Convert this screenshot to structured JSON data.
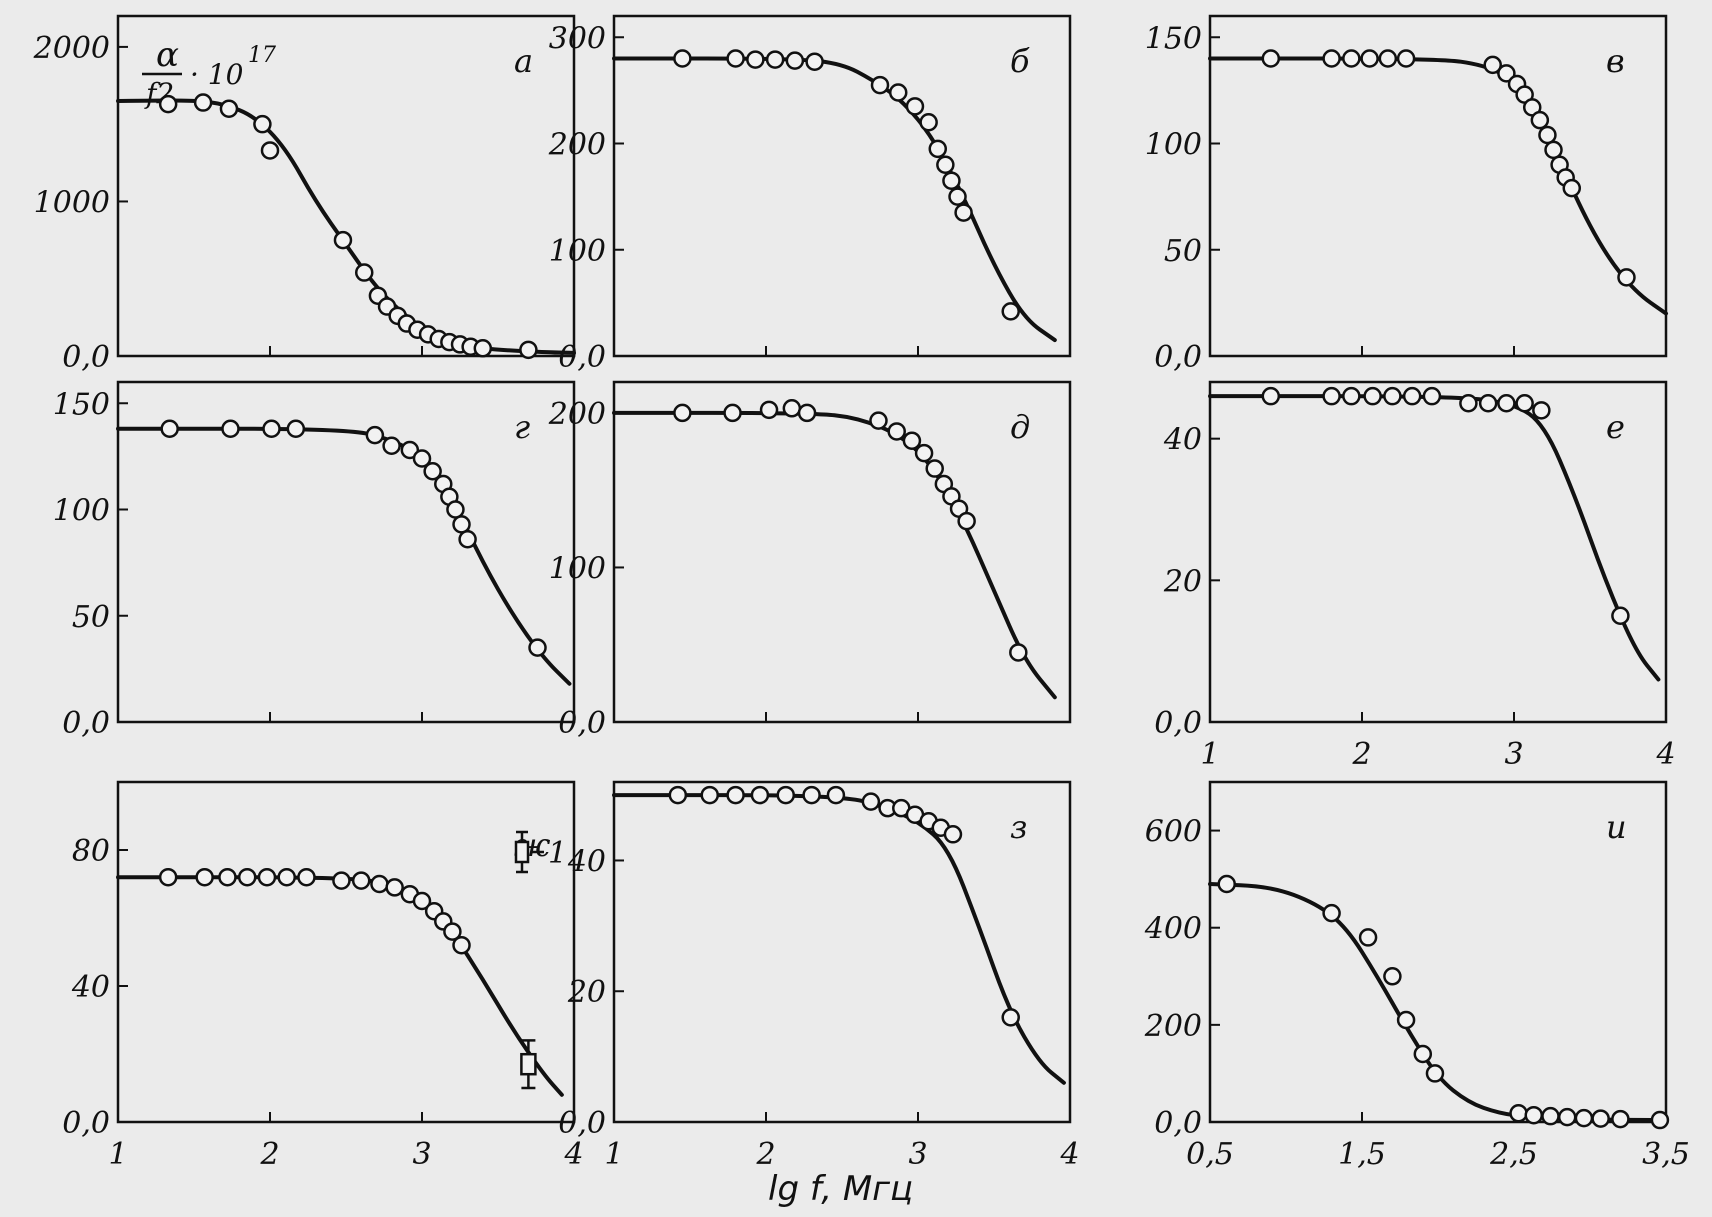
{
  "figure": {
    "ylabel_top": "α",
    "ylabel_bottom": "f2",
    "ylabel_factor": "· 10",
    "ylabel_exp": "17",
    "xlabel": "lg f, Мгц",
    "legend": {
      "label": "1"
    }
  },
  "chart_data": [
    {
      "type": "scatter",
      "letter": "а",
      "ylim": [
        0,
        2200
      ],
      "yticks": [
        "2000",
        "1000",
        "0,0"
      ],
      "ytick_values": [
        2000,
        1000,
        0
      ],
      "xlim": [
        1,
        4
      ],
      "xticks": [],
      "points": [
        [
          1.33,
          1630
        ],
        [
          1.56,
          1640
        ],
        [
          1.73,
          1600
        ],
        [
          1.95,
          1500
        ],
        [
          2.0,
          1330
        ],
        [
          2.48,
          750
        ],
        [
          2.62,
          540
        ],
        [
          2.71,
          390
        ],
        [
          2.77,
          320
        ],
        [
          2.84,
          260
        ],
        [
          2.9,
          210
        ],
        [
          2.97,
          170
        ],
        [
          3.04,
          140
        ],
        [
          3.11,
          110
        ],
        [
          3.18,
          90
        ],
        [
          3.25,
          75
        ],
        [
          3.32,
          60
        ],
        [
          3.4,
          50
        ],
        [
          3.7,
          40
        ]
      ],
      "curve": [
        [
          1,
          1650
        ],
        [
          1.5,
          1655
        ],
        [
          1.7,
          1630
        ],
        [
          1.9,
          1550
        ],
        [
          2.1,
          1350
        ],
        [
          2.3,
          1000
        ],
        [
          2.5,
          720
        ],
        [
          2.7,
          440
        ],
        [
          2.9,
          250
        ],
        [
          3.1,
          120
        ],
        [
          3.3,
          60
        ],
        [
          3.5,
          40
        ],
        [
          3.8,
          25
        ],
        [
          4,
          20
        ]
      ],
      "grid": false
    },
    {
      "type": "scatter",
      "letter": "б",
      "ylim": [
        0,
        320
      ],
      "yticks": [
        "300",
        "200",
        "100",
        "0,0"
      ],
      "ytick_values": [
        300,
        200,
        100,
        0
      ],
      "xlim": [
        1,
        4
      ],
      "xticks": [],
      "points": [
        [
          1.45,
          280
        ],
        [
          1.8,
          280
        ],
        [
          1.93,
          279
        ],
        [
          2.06,
          279
        ],
        [
          2.19,
          278
        ],
        [
          2.32,
          277
        ],
        [
          2.75,
          255
        ],
        [
          2.87,
          248
        ],
        [
          2.98,
          235
        ],
        [
          3.07,
          220
        ],
        [
          3.13,
          195
        ],
        [
          3.18,
          180
        ],
        [
          3.22,
          165
        ],
        [
          3.26,
          150
        ],
        [
          3.3,
          135
        ],
        [
          3.61,
          42
        ]
      ],
      "curve": [
        [
          1,
          280
        ],
        [
          2.2,
          280
        ],
        [
          2.5,
          275
        ],
        [
          2.7,
          260
        ],
        [
          2.9,
          240
        ],
        [
          3.1,
          205
        ],
        [
          3.3,
          150
        ],
        [
          3.5,
          85
        ],
        [
          3.7,
          35
        ],
        [
          3.9,
          15
        ]
      ],
      "grid": false
    },
    {
      "type": "scatter",
      "letter": "в",
      "ylim": [
        0,
        160
      ],
      "yticks": [
        "150",
        "100",
        "50",
        "0,0"
      ],
      "ytick_values": [
        150,
        100,
        50,
        0
      ],
      "xlim": [
        1,
        4
      ],
      "xticks": [],
      "points": [
        [
          1.4,
          140
        ],
        [
          1.8,
          140
        ],
        [
          1.93,
          140
        ],
        [
          2.05,
          140
        ],
        [
          2.17,
          140
        ],
        [
          2.29,
          140
        ],
        [
          2.86,
          137
        ],
        [
          2.95,
          133
        ],
        [
          3.02,
          128
        ],
        [
          3.07,
          123
        ],
        [
          3.12,
          117
        ],
        [
          3.17,
          111
        ],
        [
          3.22,
          104
        ],
        [
          3.26,
          97
        ],
        [
          3.3,
          90
        ],
        [
          3.34,
          84
        ],
        [
          3.38,
          79
        ],
        [
          3.74,
          37
        ]
      ],
      "curve": [
        [
          1,
          140
        ],
        [
          2.5,
          140
        ],
        [
          2.8,
          137
        ],
        [
          3,
          130
        ],
        [
          3.2,
          110
        ],
        [
          3.4,
          75
        ],
        [
          3.6,
          48
        ],
        [
          3.8,
          30
        ],
        [
          4,
          20
        ]
      ],
      "grid": false
    },
    {
      "type": "scatter",
      "letter": "г",
      "ylim": [
        0,
        160
      ],
      "yticks": [
        "150",
        "100",
        "50",
        "0,0"
      ],
      "ytick_values": [
        150,
        100,
        50,
        0
      ],
      "xlim": [
        1,
        4
      ],
      "xticks": [],
      "points": [
        [
          1.34,
          138
        ],
        [
          1.74,
          138
        ],
        [
          2.01,
          138
        ],
        [
          2.17,
          138
        ],
        [
          2.69,
          135
        ],
        [
          2.8,
          130
        ],
        [
          2.92,
          128
        ],
        [
          3.0,
          124
        ],
        [
          3.07,
          118
        ],
        [
          3.14,
          112
        ],
        [
          3.18,
          106
        ],
        [
          3.22,
          100
        ],
        [
          3.26,
          93
        ],
        [
          3.3,
          86
        ],
        [
          3.76,
          35
        ]
      ],
      "curve": [
        [
          1,
          138
        ],
        [
          2.5,
          138
        ],
        [
          2.8,
          133
        ],
        [
          3,
          125
        ],
        [
          3.2,
          105
        ],
        [
          3.4,
          75
        ],
        [
          3.6,
          50
        ],
        [
          3.8,
          30
        ],
        [
          3.97,
          18
        ]
      ],
      "grid": false
    },
    {
      "type": "scatter",
      "letter": "д",
      "ylim": [
        0,
        220
      ],
      "yticks": [
        "200",
        "100",
        "0,0"
      ],
      "ytick_values": [
        200,
        100,
        0
      ],
      "xlim": [
        1,
        4
      ],
      "xticks": [],
      "points": [
        [
          1.45,
          200
        ],
        [
          1.78,
          200
        ],
        [
          2.02,
          202
        ],
        [
          2.17,
          203
        ],
        [
          2.27,
          200
        ],
        [
          2.74,
          195
        ],
        [
          2.86,
          188
        ],
        [
          2.96,
          182
        ],
        [
          3.04,
          174
        ],
        [
          3.11,
          164
        ],
        [
          3.17,
          154
        ],
        [
          3.22,
          146
        ],
        [
          3.27,
          138
        ],
        [
          3.32,
          130
        ],
        [
          3.66,
          45
        ]
      ],
      "curve": [
        [
          1,
          200
        ],
        [
          2.3,
          200
        ],
        [
          2.6,
          197
        ],
        [
          2.9,
          185
        ],
        [
          3.1,
          165
        ],
        [
          3.3,
          130
        ],
        [
          3.5,
          85
        ],
        [
          3.7,
          40
        ],
        [
          3.9,
          16
        ]
      ],
      "grid": false
    },
    {
      "type": "scatter",
      "letter": "е",
      "ylim": [
        0,
        48
      ],
      "yticks": [
        "40",
        "20",
        "0,0"
      ],
      "ytick_values": [
        40,
        20,
        0
      ],
      "xlim": [
        1,
        4
      ],
      "xticks": [
        "1",
        "2",
        "3",
        "4"
      ],
      "xtick_values": [
        1,
        2,
        3,
        4
      ],
      "points": [
        [
          1.4,
          46
        ],
        [
          1.8,
          46
        ],
        [
          1.93,
          46
        ],
        [
          2.07,
          46
        ],
        [
          2.2,
          46
        ],
        [
          2.33,
          46
        ],
        [
          2.46,
          46
        ],
        [
          2.7,
          45
        ],
        [
          2.83,
          45
        ],
        [
          2.95,
          45
        ],
        [
          3.07,
          45
        ],
        [
          3.18,
          44
        ],
        [
          3.7,
          15
        ]
      ],
      "curve": [
        [
          1,
          46
        ],
        [
          2.6,
          46
        ],
        [
          3,
          45
        ],
        [
          3.2,
          42
        ],
        [
          3.4,
          32
        ],
        [
          3.6,
          20
        ],
        [
          3.8,
          10
        ],
        [
          3.95,
          6
        ]
      ],
      "grid": false
    },
    {
      "type": "scatter",
      "letter": "ж",
      "ylim": [
        0,
        100
      ],
      "yticks": [
        "80",
        "40",
        "0,0"
      ],
      "ytick_values": [
        80,
        40,
        0
      ],
      "xlim": [
        1,
        4
      ],
      "xticks": [
        "1",
        "2",
        "3",
        "4"
      ],
      "xtick_values": [
        1,
        2,
        3,
        4
      ],
      "points": [
        [
          1.33,
          72
        ],
        [
          1.57,
          72
        ],
        [
          1.72,
          72
        ],
        [
          1.85,
          72
        ],
        [
          1.98,
          72
        ],
        [
          2.11,
          72
        ],
        [
          2.24,
          72
        ],
        [
          2.47,
          71
        ],
        [
          2.6,
          71
        ],
        [
          2.72,
          70
        ],
        [
          2.82,
          69
        ],
        [
          2.92,
          67
        ],
        [
          3.0,
          65
        ],
        [
          3.08,
          62
        ],
        [
          3.14,
          59
        ],
        [
          3.2,
          56
        ],
        [
          3.26,
          52
        ]
      ],
      "error_points": [
        {
          "x": 3.7,
          "y": 17,
          "lo": 10,
          "hi": 24
        }
      ],
      "curve": [
        [
          1,
          72
        ],
        [
          2.5,
          72
        ],
        [
          2.8,
          70
        ],
        [
          3,
          66
        ],
        [
          3.2,
          56
        ],
        [
          3.4,
          42
        ],
        [
          3.6,
          27
        ],
        [
          3.8,
          14
        ],
        [
          3.92,
          8
        ]
      ],
      "grid": false
    },
    {
      "type": "scatter",
      "letter": "з",
      "ylim": [
        0,
        52
      ],
      "yticks": [
        "40",
        "20",
        "0,0"
      ],
      "ytick_values": [
        40,
        20,
        0
      ],
      "xlim": [
        1,
        4
      ],
      "xticks": [
        "1",
        "2",
        "3",
        "4"
      ],
      "xtick_values": [
        1,
        2,
        3,
        4
      ],
      "points": [
        [
          1.42,
          50
        ],
        [
          1.63,
          50
        ],
        [
          1.8,
          50
        ],
        [
          1.96,
          50
        ],
        [
          2.13,
          50
        ],
        [
          2.3,
          50
        ],
        [
          2.46,
          50
        ],
        [
          2.69,
          49
        ],
        [
          2.8,
          48
        ],
        [
          2.89,
          48
        ],
        [
          2.98,
          47
        ],
        [
          3.07,
          46
        ],
        [
          3.15,
          45
        ],
        [
          3.23,
          44
        ],
        [
          3.61,
          16
        ]
      ],
      "curve": [
        [
          1,
          50
        ],
        [
          2.5,
          50
        ],
        [
          2.8,
          48
        ],
        [
          3.0,
          46
        ],
        [
          3.2,
          42
        ],
        [
          3.4,
          30
        ],
        [
          3.6,
          17
        ],
        [
          3.8,
          9
        ],
        [
          3.96,
          6
        ]
      ],
      "grid": false
    },
    {
      "type": "scatter",
      "letter": "и",
      "ylim": [
        0,
        700
      ],
      "yticks": [
        "600",
        "400",
        "200",
        "0,0"
      ],
      "ytick_values": [
        600,
        400,
        200,
        0
      ],
      "xlim": [
        0.5,
        3.5
      ],
      "xticks": [
        "0,5",
        "1,5",
        "2,5",
        "3,5"
      ],
      "xtick_values": [
        0.5,
        1.5,
        2.5,
        3.5
      ],
      "points": [
        [
          0.61,
          490
        ],
        [
          1.3,
          430
        ],
        [
          1.54,
          380
        ],
        [
          1.7,
          300
        ],
        [
          1.79,
          210
        ],
        [
          1.9,
          140
        ],
        [
          1.98,
          100
        ],
        [
          2.53,
          18
        ],
        [
          2.63,
          14
        ],
        [
          2.74,
          12
        ],
        [
          2.85,
          10
        ],
        [
          2.96,
          8
        ],
        [
          3.07,
          7
        ],
        [
          3.2,
          6
        ],
        [
          3.46,
          4
        ]
      ],
      "curve": [
        [
          0.5,
          490
        ],
        [
          0.9,
          485
        ],
        [
          1.2,
          450
        ],
        [
          1.4,
          400
        ],
        [
          1.6,
          300
        ],
        [
          1.8,
          190
        ],
        [
          2.0,
          90
        ],
        [
          2.2,
          40
        ],
        [
          2.4,
          18
        ],
        [
          2.6,
          10
        ],
        [
          3.0,
          5
        ],
        [
          3.5,
          4
        ]
      ],
      "grid": false
    }
  ]
}
